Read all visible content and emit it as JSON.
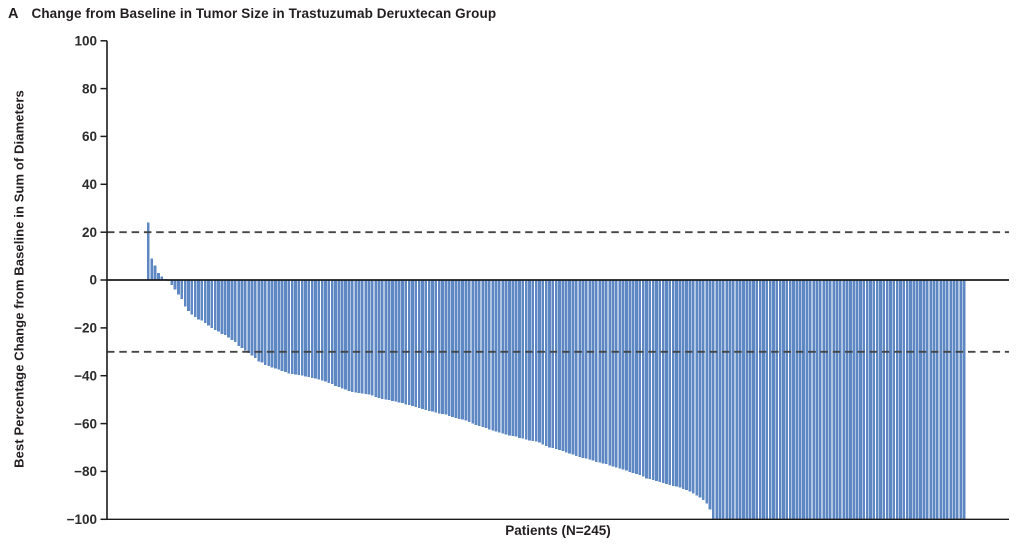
{
  "figure": {
    "panel_letter": "A",
    "title": "Change from Baseline in Tumor Size in Trastuzumab Deruxtecan Group"
  },
  "chart_data": {
    "type": "bar",
    "subtype": "waterfall",
    "title": "Change from Baseline in Tumor Size in Trastuzumab Deruxtecan Group",
    "xlabel": "Patients (N=245)",
    "ylabel": "Best Percentage Change from Baseline in Sum of Diameters",
    "n_patients": 245,
    "ylim": [
      -100,
      100
    ],
    "yticks": [
      100,
      80,
      60,
      40,
      20,
      0,
      -20,
      -40,
      -60,
      -80,
      -100
    ],
    "reference_lines": [
      20,
      -30
    ],
    "grid": false,
    "legend_position": "none",
    "bar_color": "#5E88C3",
    "reference_line_color": "#454545",
    "axis_color": "#1c1c1c",
    "values": [
      24,
      9,
      6,
      3,
      1.5,
      0.5,
      -0.5,
      -2,
      -4,
      -6,
      -8,
      -11,
      -13,
      -14.5,
      -15.5,
      -16.5,
      -17,
      -18,
      -19,
      -20,
      -21,
      -21.5,
      -22.5,
      -23,
      -24,
      -25,
      -26,
      -27.5,
      -28.5,
      -29.5,
      -30.5,
      -31.5,
      -32.5,
      -34,
      -34.5,
      -35.5,
      -36,
      -36.5,
      -37,
      -37.5,
      -38,
      -38.5,
      -39,
      -39.2,
      -39.5,
      -39.8,
      -40,
      -40.3,
      -40.6,
      -41,
      -41.2,
      -41.5,
      -42,
      -42.5,
      -43,
      -43.5,
      -44.2,
      -44.8,
      -45.3,
      -45.8,
      -46.3,
      -46.8,
      -47,
      -47.2,
      -47.4,
      -47.6,
      -47.8,
      -48.2,
      -49,
      -49.4,
      -49.7,
      -50,
      -50.2,
      -50.5,
      -50.8,
      -51.2,
      -51.5,
      -52,
      -52.3,
      -52.7,
      -53,
      -53.5,
      -54,
      -54.3,
      -54.8,
      -55,
      -55.4,
      -55.7,
      -56,
      -56.3,
      -56.8,
      -57.2,
      -57.6,
      -58,
      -58.4,
      -58.8,
      -59.3,
      -60,
      -60.6,
      -61,
      -61.4,
      -61.8,
      -62.4,
      -63,
      -63.4,
      -63.8,
      -64.2,
      -64.6,
      -65,
      -65.2,
      -65.5,
      -66,
      -66.3,
      -66.7,
      -67,
      -67.3,
      -67.6,
      -68,
      -68.7,
      -69.3,
      -70,
      -70.3,
      -70.7,
      -71,
      -71.5,
      -72,
      -72.5,
      -73,
      -73.5,
      -74,
      -74.3,
      -74.7,
      -75,
      -75.5,
      -76,
      -76.3,
      -76.7,
      -77,
      -77.5,
      -78,
      -78.4,
      -78.8,
      -79.2,
      -79.7,
      -80.2,
      -80.7,
      -81,
      -81.5,
      -82.2,
      -83,
      -83.2,
      -83.6,
      -84,
      -84.4,
      -84.8,
      -85.2,
      -85.6,
      -86,
      -86.4,
      -86.8,
      -87.3,
      -87.8,
      -88.5,
      -89.2,
      -90,
      -91,
      -92,
      -93.5,
      -96,
      -100,
      -100,
      -100,
      -100,
      -100,
      -100,
      -100,
      -100,
      -100,
      -100,
      -100,
      -100,
      -100,
      -100,
      -100,
      -100,
      -100,
      -100,
      -100,
      -100,
      -100,
      -100,
      -100,
      -100,
      -100,
      -100,
      -100,
      -100,
      -100,
      -100,
      -100,
      -100,
      -100,
      -100,
      -100,
      -100,
      -100,
      -100,
      -100,
      -100,
      -100,
      -100,
      -100,
      -100,
      -100,
      -100,
      -100,
      -100,
      -100,
      -100,
      -100,
      -100,
      -100,
      -100,
      -100,
      -100,
      -100,
      -100,
      -100,
      -100,
      -100,
      -100,
      -100,
      -100,
      -100,
      -100,
      -100,
      -100,
      -100,
      -100,
      -100,
      -100,
      -100,
      -100,
      -100,
      -100
    ]
  }
}
